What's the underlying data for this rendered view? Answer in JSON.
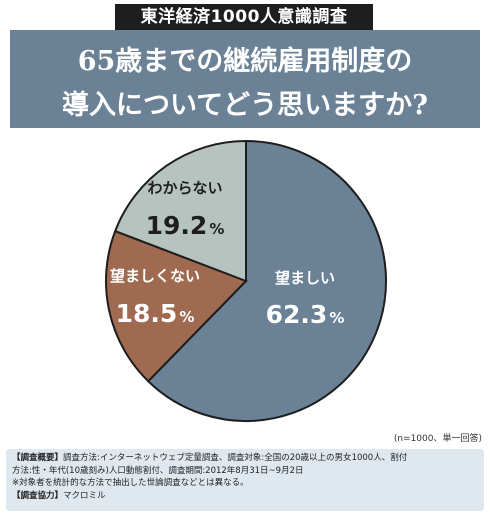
{
  "survey_tag": "東洋経済1000人意識調査",
  "question": {
    "line1": "65歳までの継続雇用制度の",
    "line2": "導入についてどう思いますか?"
  },
  "chart_data": {
    "type": "pie",
    "title": "65歳までの継続雇用制度の導入についてどう思いますか?",
    "unit": "%",
    "slices": [
      {
        "label": "望ましい",
        "value": 62.3,
        "value_text": "62.3",
        "color": "#6a8196"
      },
      {
        "label": "望ましくない",
        "value": 18.5,
        "value_text": "18.5",
        "color": "#a06a50"
      },
      {
        "label": "わからない",
        "value": 19.2,
        "value_text": "19.2",
        "color": "#b7c3bf"
      }
    ]
  },
  "note": "(n=1000、単一回答)",
  "footer": {
    "overview_label": "【調査概要】",
    "overview_line1": "調査方法:インターネットウェブ定量調査、調査対象:全国の20歳以上の男女1000人、割付",
    "overview_line2": "方法:性・年代(10歳刻み)人口動態割付、調査期間:2012年8月31日~9月2日",
    "overview_line3": "※対象者を統計的な方法で抽出した世論調査などとは異なる。",
    "cooperation_label": "【調査協力】",
    "cooperation_value": "マクロミル"
  }
}
